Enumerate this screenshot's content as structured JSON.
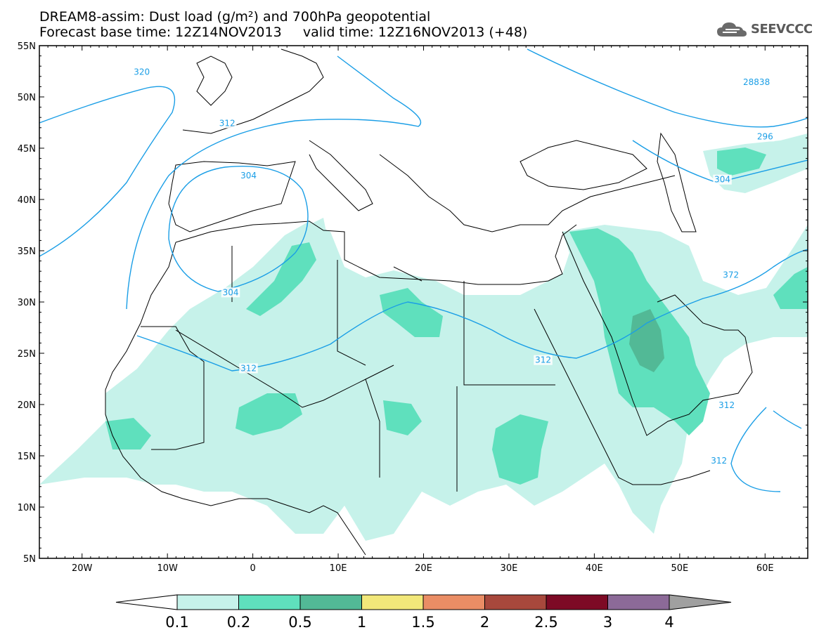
{
  "title": {
    "line1": "DREAM8-assim: Dust load (g/m²) and 700hPa geopotential",
    "line2": "Forecast base time: 12Z14NOV2013     valid time: 12Z16NOV2013 (+48)"
  },
  "logo": {
    "text": "SEEVCCC",
    "icon": "cloud-logo-icon"
  },
  "axes": {
    "lat_labels": [
      "55N",
      "50N",
      "45N",
      "40N",
      "35N",
      "30N",
      "25N",
      "20N",
      "15N",
      "10N",
      "5N"
    ],
    "lon_labels": [
      "20W",
      "10W",
      "0",
      "10E",
      "20E",
      "30E",
      "40E",
      "50E",
      "60E"
    ]
  },
  "contour_labels": [
    {
      "text": "320",
      "lon": -13,
      "lat": 52.3
    },
    {
      "text": "312",
      "lon": -3,
      "lat": 47.3
    },
    {
      "text": "304",
      "lon": -0.5,
      "lat": 42.2
    },
    {
      "text": "304",
      "lon": -2.6,
      "lat": 30.8
    },
    {
      "text": "312",
      "lon": -0.5,
      "lat": 23.4
    },
    {
      "text": "312",
      "lon": 34,
      "lat": 24.2
    },
    {
      "text": "312",
      "lon": 55.5,
      "lat": 19.8
    },
    {
      "text": "312",
      "lon": 54.6,
      "lat": 14.4
    },
    {
      "text": "372",
      "lon": 56,
      "lat": 32.5
    },
    {
      "text": "304",
      "lon": 55,
      "lat": 41.8
    },
    {
      "text": "296",
      "lon": 60,
      "lat": 46
    },
    {
      "text": "28838",
      "lon": 59,
      "lat": 51.3
    }
  ],
  "colorbar": {
    "labels": [
      "0.1",
      "0.2",
      "0.5",
      "1",
      "1.5",
      "2",
      "2.5",
      "3",
      "4"
    ],
    "colors": [
      "#c6f2ea",
      "#5fe0bd",
      "#52b996",
      "#f2e87a",
      "#ea8d65",
      "#a8483c",
      "#7d0a25",
      "#8c6a98"
    ],
    "under_color": "#ffffff",
    "over_color": "#a0a0a0"
  },
  "legend_colors": {
    "contour": "#1a9ee6",
    "coastline": "#000000"
  }
}
